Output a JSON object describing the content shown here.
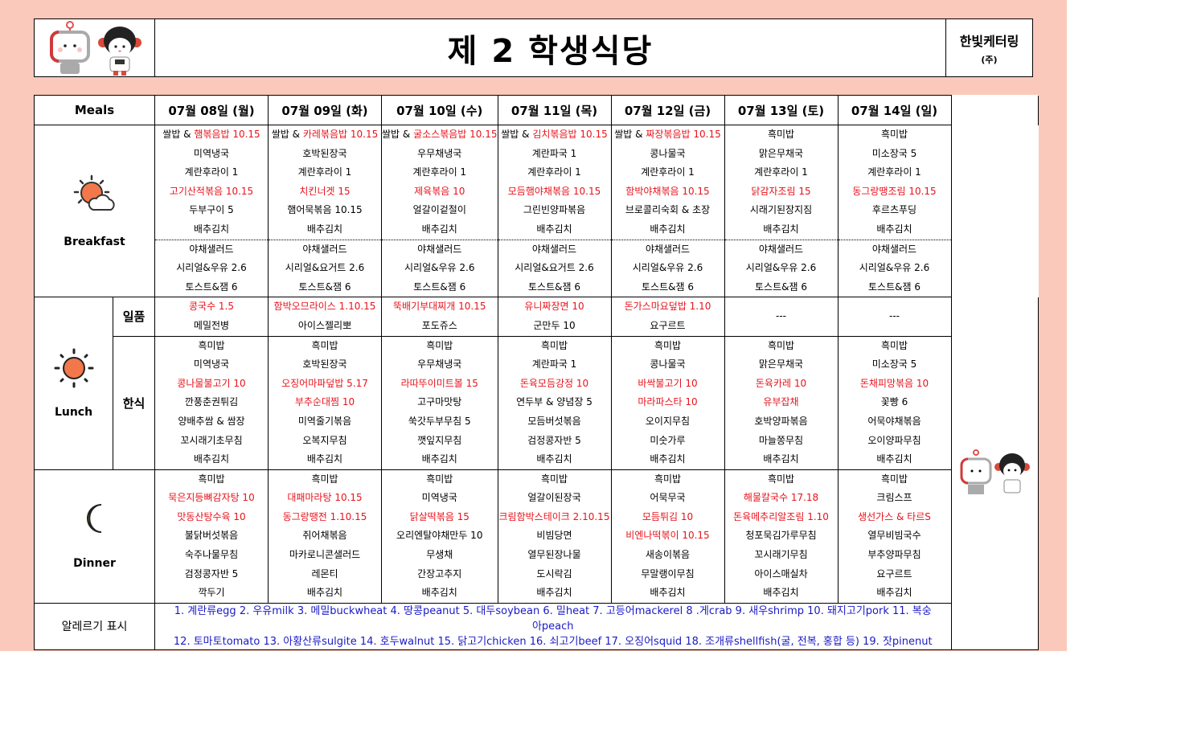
{
  "header": {
    "title": "제 2 학생식당",
    "company": "한빛케터링",
    "company_suffix": "(주)"
  },
  "table": {
    "meals_label": "Meals",
    "days": [
      "07월 08일 (월)",
      "07월 09일 (화)",
      "07월 10일 (수)",
      "07월 11일 (목)",
      "07월 12일 (금)",
      "07월 13일 (토)",
      "07월 14일 (일)"
    ],
    "breakfast_label": "Breakfast",
    "lunch_label": "Lunch",
    "dinner_label": "Dinner",
    "lunch_special_label": "일품",
    "lunch_korean_label": "한식",
    "allergy_label": "알레르기 표시",
    "allergy_text_1": "1. 계란류egg 2. 우유milk 3. 메밀buckwheat 4. 땅콩peanut 5. 대두soybean 6. 밀heat 7. 고등어mackerel 8 .게crab 9. 새우shrimp 10. 돼지고기pork 11. 복숭아peach",
    "allergy_text_2": "12. 토마토tomato 13. 아황산류sulgite 14. 호두walnut 15. 닭고기chicken 16. 쇠고기beef 17. 오징어squid 18. 조개류shellfish(굴, 전복, 홍합 등) 19. 잣pinenut"
  },
  "colors": {
    "highlight": "#e8131b",
    "background": "#fbc9bc",
    "allergy": "#1a1ac8"
  },
  "menu": {
    "breakfast": [
      [
        [
          "쌀밥 & ",
          "햄볶음밥 10.15"
        ],
        "미역냉국",
        "계란후라이 1",
        [
          "",
          "고기산적볶음 10.15"
        ],
        "두부구이 5",
        "배추김치",
        "야채샐러드",
        "시리얼&우유 2.6",
        "토스트&잼 6"
      ],
      [
        [
          "쌀밥 & ",
          "카레볶음밥 10.15"
        ],
        "호박된장국",
        "계란후라이 1",
        [
          "",
          "치킨너겟 15"
        ],
        "햄어묵볶음 10.15",
        "배추김치",
        "야채샐러드",
        "시리얼&요거트 2.6",
        "토스트&잼 6"
      ],
      [
        [
          "쌀밥 & ",
          "굴소스볶음밥 10.15"
        ],
        "우무채냉국",
        "계란후라이 1",
        [
          "",
          "제육볶음 10"
        ],
        "얼갈이겉절이",
        "배추김치",
        "야채샐러드",
        "시리얼&우유 2.6",
        "토스트&잼 6"
      ],
      [
        [
          "쌀밥 & ",
          "김치볶음밥 10.15"
        ],
        "계란파국 1",
        "계란후라이 1",
        [
          "",
          "모듬햄야채볶음 10.15"
        ],
        "그린빈양파볶음",
        "배추김치",
        "야채샐러드",
        "시리얼&요거트 2.6",
        "토스트&잼 6"
      ],
      [
        [
          "쌀밥 & ",
          "짜장볶음밥 10.15"
        ],
        "콩나물국",
        "계란후라이 1",
        [
          "",
          "함박야채볶음 10.15"
        ],
        "브로콜리숙회 & 초장",
        "배추김치",
        "야채샐러드",
        "시리얼&우유 2.6",
        "토스트&잼 6"
      ],
      [
        "흑미밥",
        "맑은무채국",
        "계란후라이 1",
        [
          "",
          "닭감자조림 15"
        ],
        "시래기된장지짐",
        "배추김치",
        "야채샐러드",
        "시리얼&우유 2.6",
        "토스트&잼 6"
      ],
      [
        "흑미밥",
        "미소장국 5",
        "계란후라이 1",
        [
          "",
          "동그랑땡조림 10.15"
        ],
        "후르츠푸딩",
        "배추김치",
        "야채샐러드",
        "시리얼&우유 2.6",
        "토스트&잼 6"
      ]
    ],
    "lunch_special": [
      [
        [
          "",
          "콩국수 1.5"
        ],
        "메밀전병"
      ],
      [
        [
          "",
          "함박오므라이스 1.10.15"
        ],
        "아이스젤리뽀"
      ],
      [
        [
          "",
          "뚝배기부대찌개 10.15"
        ],
        "포도쥬스"
      ],
      [
        [
          "",
          "유니짜장면 10"
        ],
        "군만두 10"
      ],
      [
        [
          "",
          "돈가스마요덮밥 1.10"
        ],
        "요구르트"
      ],
      [
        "---"
      ],
      [
        "---"
      ]
    ],
    "lunch_korean": [
      [
        "흑미밥",
        "미역냉국",
        [
          "",
          "콩나물불고기 10"
        ],
        "깐풍춘권튀김",
        "양배추쌈 & 쌈장",
        "꼬시래기초무침",
        "배추김치"
      ],
      [
        "흑미밥",
        "호박된장국",
        [
          "",
          "오징어마파덮밥 5.17"
        ],
        [
          "",
          "부추순대찜 10"
        ],
        "미역줄기볶음",
        "오복지무침",
        "배추김치"
      ],
      [
        "흑미밥",
        "우무채냉국",
        [
          "",
          "라따뚜이미트볼 15"
        ],
        "고구마맛탕",
        "쑥갓두부무침 5",
        "깻잎지무침",
        "배추김치"
      ],
      [
        "흑미밥",
        "계란파국 1",
        [
          "",
          "돈육모듬강정 10"
        ],
        "연두부 & 양념장 5",
        "모듬버섯볶음",
        "검정콩자반 5",
        "배추김치"
      ],
      [
        "흑미밥",
        "콩나물국",
        [
          "",
          "바싹불고기 10"
        ],
        [
          "",
          "마라파스타 10"
        ],
        "오이지무침",
        "미숫가루",
        "배추김치"
      ],
      [
        "흑미밥",
        "맑은무채국",
        [
          "",
          "돈육카레 10"
        ],
        [
          "",
          "유부잡채"
        ],
        "호박양파볶음",
        "마늘쫑무침",
        "배추김치"
      ],
      [
        "흑미밥",
        "미소장국 5",
        [
          "",
          "돈채피망볶음 10"
        ],
        "꽃빵 6",
        "어묵야채볶음",
        "오이양파무침",
        "배추김치"
      ]
    ],
    "dinner": [
      [
        "흑미밥",
        [
          "",
          "묵은지등뼈감자탕 10"
        ],
        [
          "",
          "맛동산탕수육 10"
        ],
        "불닭버섯볶음",
        "숙주나물무침",
        "검정콩자반 5",
        "깍두기"
      ],
      [
        "흑미밥",
        [
          "",
          "대패마라탕 10.15"
        ],
        [
          "",
          "동그랑땡전 1.10.15"
        ],
        "쥐어채볶음",
        "마카로니콘샐러드",
        "레몬티",
        "배추김치"
      ],
      [
        "흑미밥",
        "미역냉국",
        [
          "",
          "닭살떡볶음 15"
        ],
        "오리엔탈야채만두 10",
        "무생채",
        "간장고추지",
        "배추김치"
      ],
      [
        "흑미밥",
        "얼갈이된장국",
        [
          "",
          "크림함박스테이크 2.10.15"
        ],
        "비빔당면",
        "열무된장나물",
        "도시락김",
        "배추김치"
      ],
      [
        "흑미밥",
        "어묵무국",
        [
          "",
          "모듬튀김 10"
        ],
        [
          "",
          "비엔나떡볶이 10.15"
        ],
        "새송이볶음",
        "무말랭이무침",
        "배추김치"
      ],
      [
        "흑미밥",
        [
          "",
          "해물칼국수 17.18"
        ],
        [
          "",
          "돈육메추리알조림 1.10"
        ],
        "청포묵김가루무침",
        "꼬시래기무침",
        "아이스매실차",
        "배추김치"
      ],
      [
        "흑미밥",
        "크림스프",
        [
          "",
          "생선가스 & 타르S"
        ],
        "열무비빔국수",
        "부추양파무침",
        "요구르트",
        "배추김치"
      ]
    ]
  }
}
